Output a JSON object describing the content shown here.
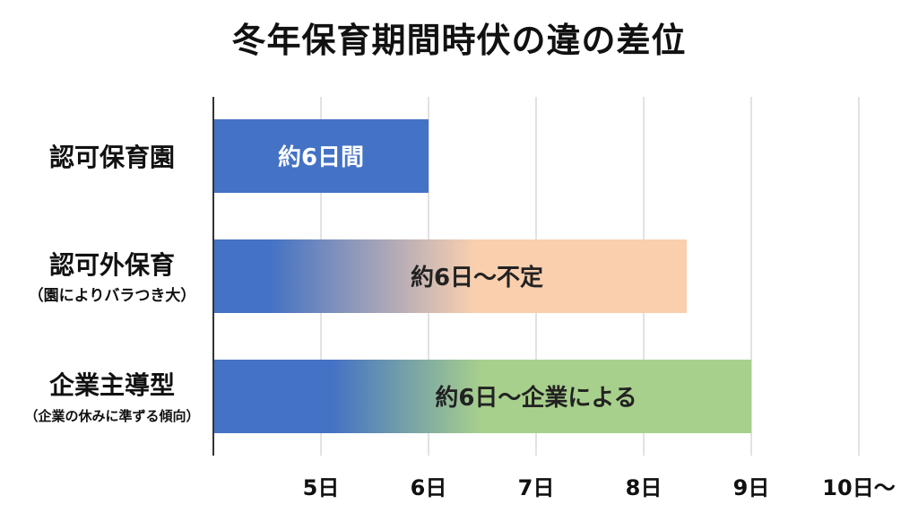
{
  "chart_data": {
    "type": "bar",
    "orientation": "horizontal",
    "title": "冬年保育期間時伏の違の差位",
    "xlabel": "",
    "ylabel": "",
    "xlim": [
      4,
      10
    ],
    "grid": true,
    "ticks": [
      {
        "value": 5,
        "label": "5日"
      },
      {
        "value": 6,
        "label": "6日"
      },
      {
        "value": 7,
        "label": "7日"
      },
      {
        "value": 8,
        "label": "8日"
      },
      {
        "value": 9,
        "label": "9日"
      },
      {
        "value": 10,
        "label": "10日〜"
      }
    ],
    "categories": [
      {
        "name": "認可保育園",
        "sub": ""
      },
      {
        "name": "認可外保育",
        "sub": "（園によりバラつき大）"
      },
      {
        "name": "企業主導型",
        "sub": "（企業の休みに準ずる傾向）"
      }
    ],
    "values": [
      6,
      8.4,
      9
    ],
    "bar_labels": [
      "約6日間",
      "約6日〜不定",
      "約6日〜企業による"
    ],
    "colors": {
      "base": "#4472c4",
      "bar1_end": "#4472c4",
      "bar2_end": "#f9cfae",
      "bar3_end": "#a8d08d",
      "grid": "#d9d9d9",
      "axis": "#333333"
    }
  }
}
